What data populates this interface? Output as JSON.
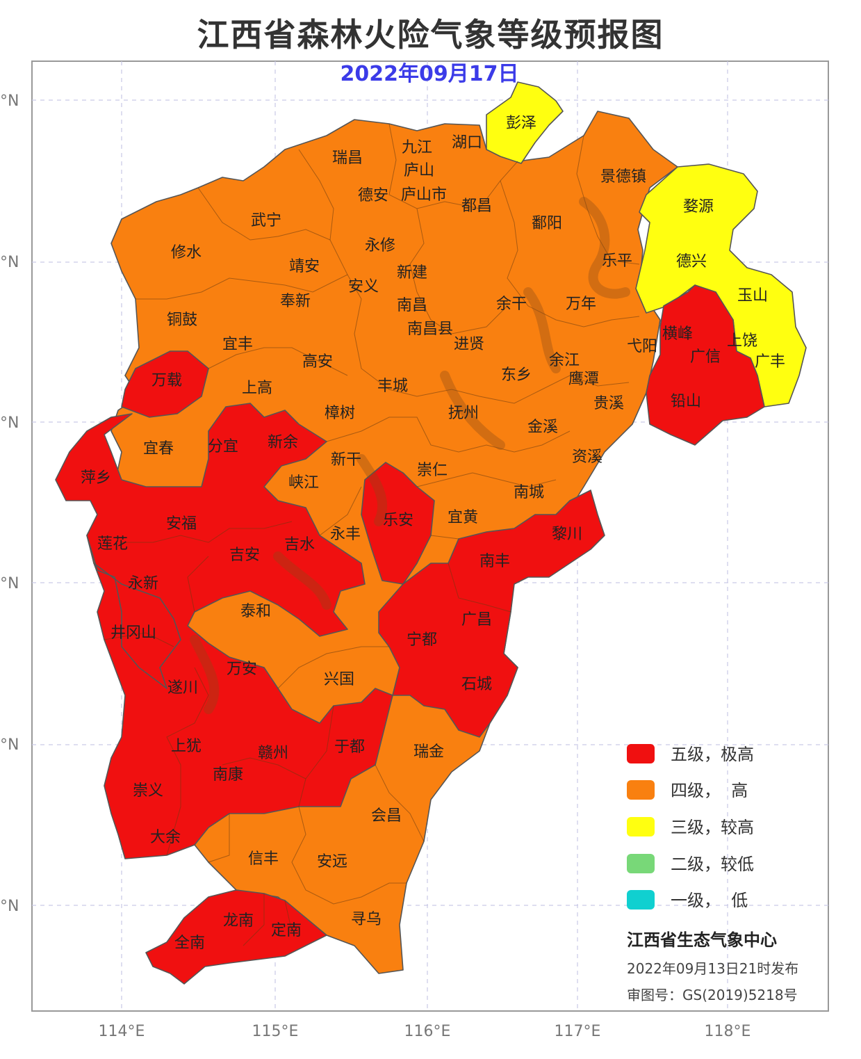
{
  "title": "江西省森林火险气象等级预报图",
  "date": "2022年09月17日",
  "axes": {
    "lon_ticks": [
      "114°E",
      "115°E",
      "116°E",
      "117°E",
      "118°E"
    ],
    "lat_ticks": [
      "°N",
      "°N",
      "°N",
      "°N",
      "°N",
      "°N",
      "°N"
    ]
  },
  "colors": {
    "level5": "#f01010",
    "level4": "#f98010",
    "level3": "#ffff10",
    "level2": "#78d878",
    "level1": "#10d0d0"
  },
  "legend": [
    {
      "label": "五级，极高",
      "color": "#f01010"
    },
    {
      "label": "四级，  高",
      "color": "#f98010"
    },
    {
      "label": "三级，较高",
      "color": "#ffff10"
    },
    {
      "label": "二级，较低",
      "color": "#78d878"
    },
    {
      "label": "一级，  低",
      "color": "#10d0d0"
    }
  ],
  "publisher": "江西省生态气象中心",
  "issued": "2022年09月13日21时发布",
  "approval": "审图号：GS(2019)5218号",
  "places": [
    {
      "name": "彭泽",
      "level": 3
    },
    {
      "name": "瑞昌",
      "level": 4
    },
    {
      "name": "九江",
      "level": 4
    },
    {
      "name": "湖口",
      "level": 4
    },
    {
      "name": "庐山",
      "level": 4
    },
    {
      "name": "景德镇",
      "level": 4
    },
    {
      "name": "德安",
      "level": 4
    },
    {
      "name": "庐山市",
      "level": 4
    },
    {
      "name": "都昌",
      "level": 4
    },
    {
      "name": "婺源",
      "level": 3
    },
    {
      "name": "武宁",
      "level": 4
    },
    {
      "name": "鄱阳",
      "level": 4
    },
    {
      "name": "修水",
      "level": 4
    },
    {
      "name": "永修",
      "level": 4
    },
    {
      "name": "乐平",
      "level": 4
    },
    {
      "name": "德兴",
      "level": 3
    },
    {
      "name": "靖安",
      "level": 4
    },
    {
      "name": "新建",
      "level": 4
    },
    {
      "name": "安义",
      "level": 4
    },
    {
      "name": "玉山",
      "level": 3
    },
    {
      "name": "奉新",
      "level": 4
    },
    {
      "name": "南昌",
      "level": 4
    },
    {
      "name": "余干",
      "level": 4
    },
    {
      "name": "万年",
      "level": 4
    },
    {
      "name": "铜鼓",
      "level": 4
    },
    {
      "name": "南昌县",
      "level": 4
    },
    {
      "name": "横峰",
      "level": 5
    },
    {
      "name": "上饶",
      "level": 5
    },
    {
      "name": "进贤",
      "level": 4
    },
    {
      "name": "弋阳",
      "level": 4
    },
    {
      "name": "宜丰",
      "level": 4
    },
    {
      "name": "广信",
      "level": 5
    },
    {
      "name": "广丰",
      "level": 3
    },
    {
      "name": "余江",
      "level": 4
    },
    {
      "name": "高安",
      "level": 4
    },
    {
      "name": "东乡",
      "level": 4
    },
    {
      "name": "鹰潭",
      "level": 4
    },
    {
      "name": "万载",
      "level": 5
    },
    {
      "name": "丰城",
      "level": 4
    },
    {
      "name": "上高",
      "level": 4
    },
    {
      "name": "贵溪",
      "level": 4
    },
    {
      "name": "铅山",
      "level": 5
    },
    {
      "name": "樟树",
      "level": 4
    },
    {
      "name": "抚州",
      "level": 4
    },
    {
      "name": "金溪",
      "level": 4
    },
    {
      "name": "宜春",
      "level": 4
    },
    {
      "name": "分宜",
      "level": 5
    },
    {
      "name": "新余",
      "level": 5
    },
    {
      "name": "资溪",
      "level": 4
    },
    {
      "name": "新干",
      "level": 4
    },
    {
      "name": "崇仁",
      "level": 4
    },
    {
      "name": "萍乡",
      "level": 5
    },
    {
      "name": "峡江",
      "level": 4
    },
    {
      "name": "南城",
      "level": 4
    },
    {
      "name": "安福",
      "level": 5
    },
    {
      "name": "乐安",
      "level": 5
    },
    {
      "name": "宜黄",
      "level": 4
    },
    {
      "name": "黎川",
      "level": 5
    },
    {
      "name": "莲花",
      "level": 4
    },
    {
      "name": "吉水",
      "level": 5
    },
    {
      "name": "永丰",
      "level": 4
    },
    {
      "name": "吉安",
      "level": 5
    },
    {
      "name": "南丰",
      "level": 5
    },
    {
      "name": "永新",
      "level": 5
    },
    {
      "name": "泰和",
      "level": 4
    },
    {
      "name": "广昌",
      "level": 4
    },
    {
      "name": "井冈山",
      "level": 5
    },
    {
      "name": "宁都",
      "level": 5
    },
    {
      "name": "万安",
      "level": 5
    },
    {
      "name": "遂川",
      "level": 5
    },
    {
      "name": "兴国",
      "level": 4
    },
    {
      "name": "石城",
      "level": 5
    },
    {
      "name": "上犹",
      "level": 5
    },
    {
      "name": "于都",
      "level": 5
    },
    {
      "name": "赣州",
      "level": 5
    },
    {
      "name": "瑞金",
      "level": 4
    },
    {
      "name": "南康",
      "level": 5
    },
    {
      "name": "崇义",
      "level": 5
    },
    {
      "name": "会昌",
      "level": 4
    },
    {
      "name": "大余",
      "level": 5
    },
    {
      "name": "信丰",
      "level": 4
    },
    {
      "name": "安远",
      "level": 4
    },
    {
      "name": "龙南",
      "level": 5
    },
    {
      "name": "寻乌",
      "level": 4
    },
    {
      "name": "全南",
      "level": 5
    },
    {
      "name": "定南",
      "level": 5
    }
  ]
}
